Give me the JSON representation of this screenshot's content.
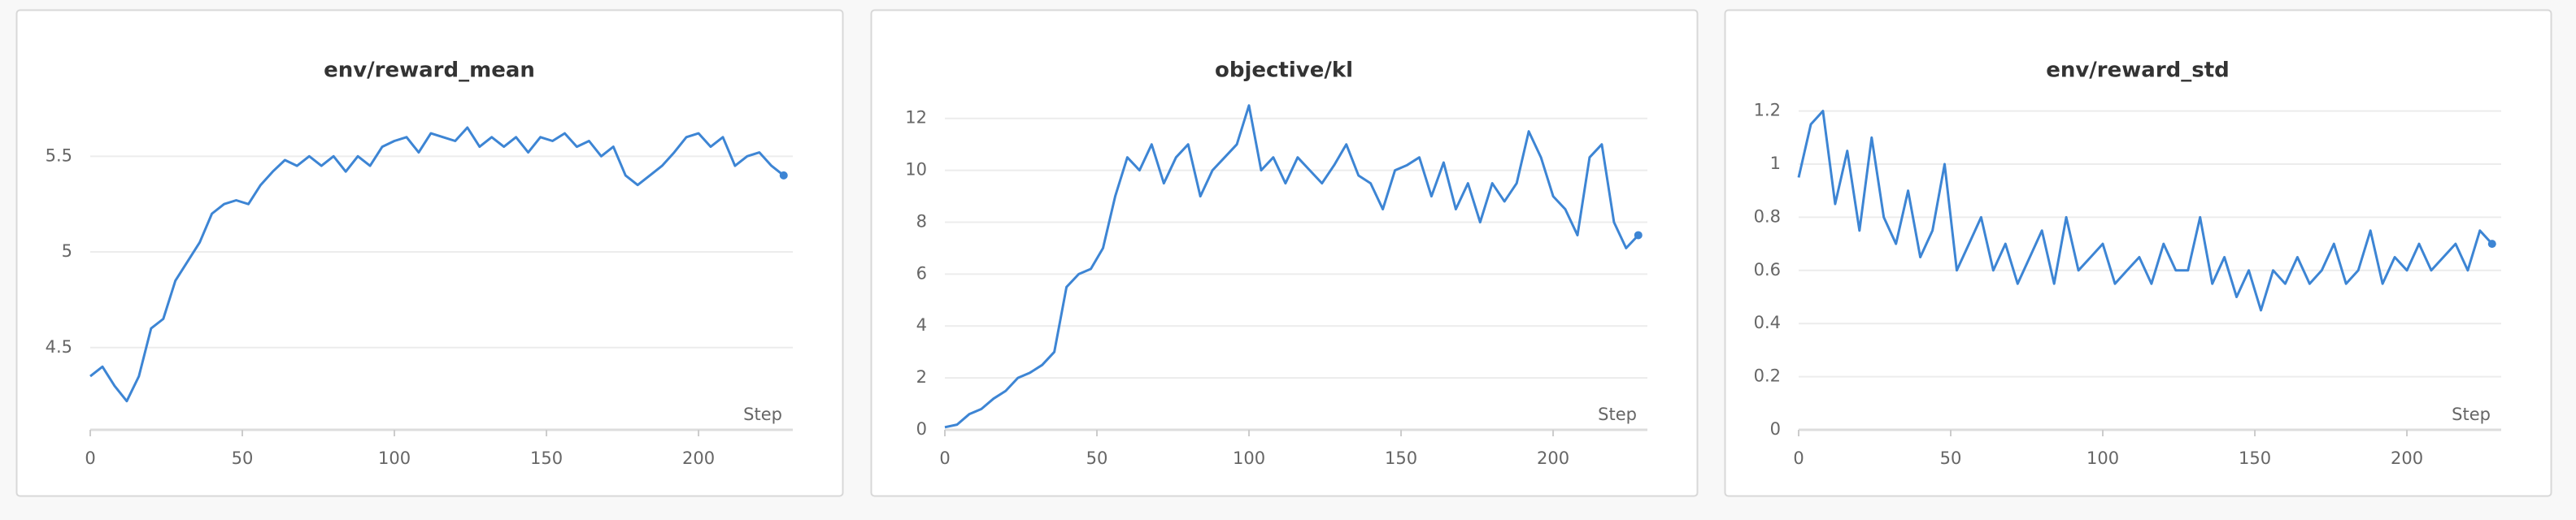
{
  "chart_data": [
    {
      "type": "line",
      "title": "env/reward_mean",
      "x_label": "Step",
      "x": [
        0,
        4,
        8,
        12,
        16,
        20,
        24,
        28,
        32,
        36,
        40,
        44,
        48,
        52,
        56,
        60,
        64,
        68,
        72,
        76,
        80,
        84,
        88,
        92,
        96,
        100,
        104,
        108,
        112,
        116,
        120,
        124,
        128,
        132,
        136,
        140,
        144,
        148,
        152,
        156,
        160,
        164,
        168,
        172,
        176,
        180,
        184,
        188,
        192,
        196,
        200,
        204,
        208,
        212,
        216,
        220,
        224,
        228
      ],
      "series": [
        {
          "color": "#3d85d4",
          "values": [
            4.35,
            4.4,
            4.3,
            4.22,
            4.35,
            4.6,
            4.65,
            4.85,
            4.95,
            5.05,
            5.2,
            5.25,
            5.27,
            5.25,
            5.35,
            5.42,
            5.48,
            5.45,
            5.5,
            5.45,
            5.5,
            5.42,
            5.5,
            5.45,
            5.55,
            5.58,
            5.6,
            5.52,
            5.62,
            5.6,
            5.58,
            5.65,
            5.55,
            5.6,
            5.55,
            5.6,
            5.52,
            5.6,
            5.58,
            5.62,
            5.55,
            5.58,
            5.5,
            5.55,
            5.4,
            5.35,
            5.4,
            5.45,
            5.52,
            5.6,
            5.62,
            5.55,
            5.6,
            5.45,
            5.5,
            5.52,
            5.45,
            5.4
          ]
        }
      ],
      "xlim": [
        0,
        231
      ],
      "xticks": [
        0,
        50,
        100,
        150,
        200
      ],
      "ylim": [
        4.07,
        5.82
      ],
      "yticks": [
        4.5,
        5,
        5.5
      ],
      "grid": true
    },
    {
      "type": "line",
      "title": "objective/kl",
      "x_label": "Step",
      "x": [
        0,
        4,
        8,
        12,
        16,
        20,
        24,
        28,
        32,
        36,
        40,
        44,
        48,
        52,
        56,
        60,
        64,
        68,
        72,
        76,
        80,
        84,
        88,
        92,
        96,
        100,
        104,
        108,
        112,
        116,
        120,
        124,
        128,
        132,
        136,
        140,
        144,
        148,
        152,
        156,
        160,
        164,
        168,
        172,
        176,
        180,
        184,
        188,
        192,
        196,
        200,
        204,
        208,
        212,
        216,
        220,
        224,
        228
      ],
      "series": [
        {
          "color": "#3d85d4",
          "values": [
            0.1,
            0.2,
            0.6,
            0.8,
            1.2,
            1.5,
            2,
            2.2,
            2.5,
            3,
            5.5,
            6,
            6.2,
            7,
            9,
            10.5,
            10,
            11,
            9.5,
            10.5,
            11,
            9,
            10,
            10.5,
            11,
            12.5,
            10,
            10.5,
            9.5,
            10.5,
            10,
            9.5,
            10.2,
            11,
            9.8,
            9.5,
            8.5,
            10,
            10.2,
            10.5,
            9,
            10.3,
            8.5,
            9.5,
            8,
            9.5,
            8.8,
            9.5,
            11.5,
            10.5,
            9,
            8.5,
            7.5,
            10.5,
            11,
            8,
            7,
            7.5
          ]
        }
      ],
      "xlim": [
        0,
        231
      ],
      "xticks": [
        0,
        50,
        100,
        150,
        200
      ],
      "ylim": [
        0,
        12.9
      ],
      "yticks": [
        0,
        2,
        4,
        6,
        8,
        10,
        12
      ],
      "grid": true
    },
    {
      "type": "line",
      "title": "env/reward_std",
      "x_label": "Step",
      "x": [
        0,
        4,
        8,
        12,
        16,
        20,
        24,
        28,
        32,
        36,
        40,
        44,
        48,
        52,
        56,
        60,
        64,
        68,
        72,
        76,
        80,
        84,
        88,
        92,
        96,
        100,
        104,
        108,
        112,
        116,
        120,
        124,
        128,
        132,
        136,
        140,
        144,
        148,
        152,
        156,
        160,
        164,
        168,
        172,
        176,
        180,
        184,
        188,
        192,
        196,
        200,
        204,
        208,
        212,
        216,
        220,
        224,
        228
      ],
      "series": [
        {
          "color": "#3d85d4",
          "values": [
            0.95,
            1.15,
            1.2,
            0.85,
            1.05,
            0.75,
            1.1,
            0.8,
            0.7,
            0.9,
            0.65,
            0.75,
            1,
            0.6,
            0.7,
            0.8,
            0.6,
            0.7,
            0.55,
            0.65,
            0.75,
            0.55,
            0.8,
            0.6,
            0.65,
            0.7,
            0.55,
            0.6,
            0.65,
            0.55,
            0.7,
            0.6,
            0.6,
            0.8,
            0.55,
            0.65,
            0.5,
            0.6,
            0.45,
            0.6,
            0.55,
            0.65,
            0.55,
            0.6,
            0.7,
            0.55,
            0.6,
            0.75,
            0.55,
            0.65,
            0.6,
            0.7,
            0.6,
            0.65,
            0.7,
            0.6,
            0.75,
            0.7
          ]
        }
      ],
      "xlim": [
        0,
        231
      ],
      "xticks": [
        0,
        50,
        100,
        150,
        200
      ],
      "ylim": [
        0,
        1.26
      ],
      "yticks": [
        0,
        0.2,
        0.4,
        0.6,
        0.8,
        1,
        1.2
      ],
      "grid": true
    }
  ]
}
